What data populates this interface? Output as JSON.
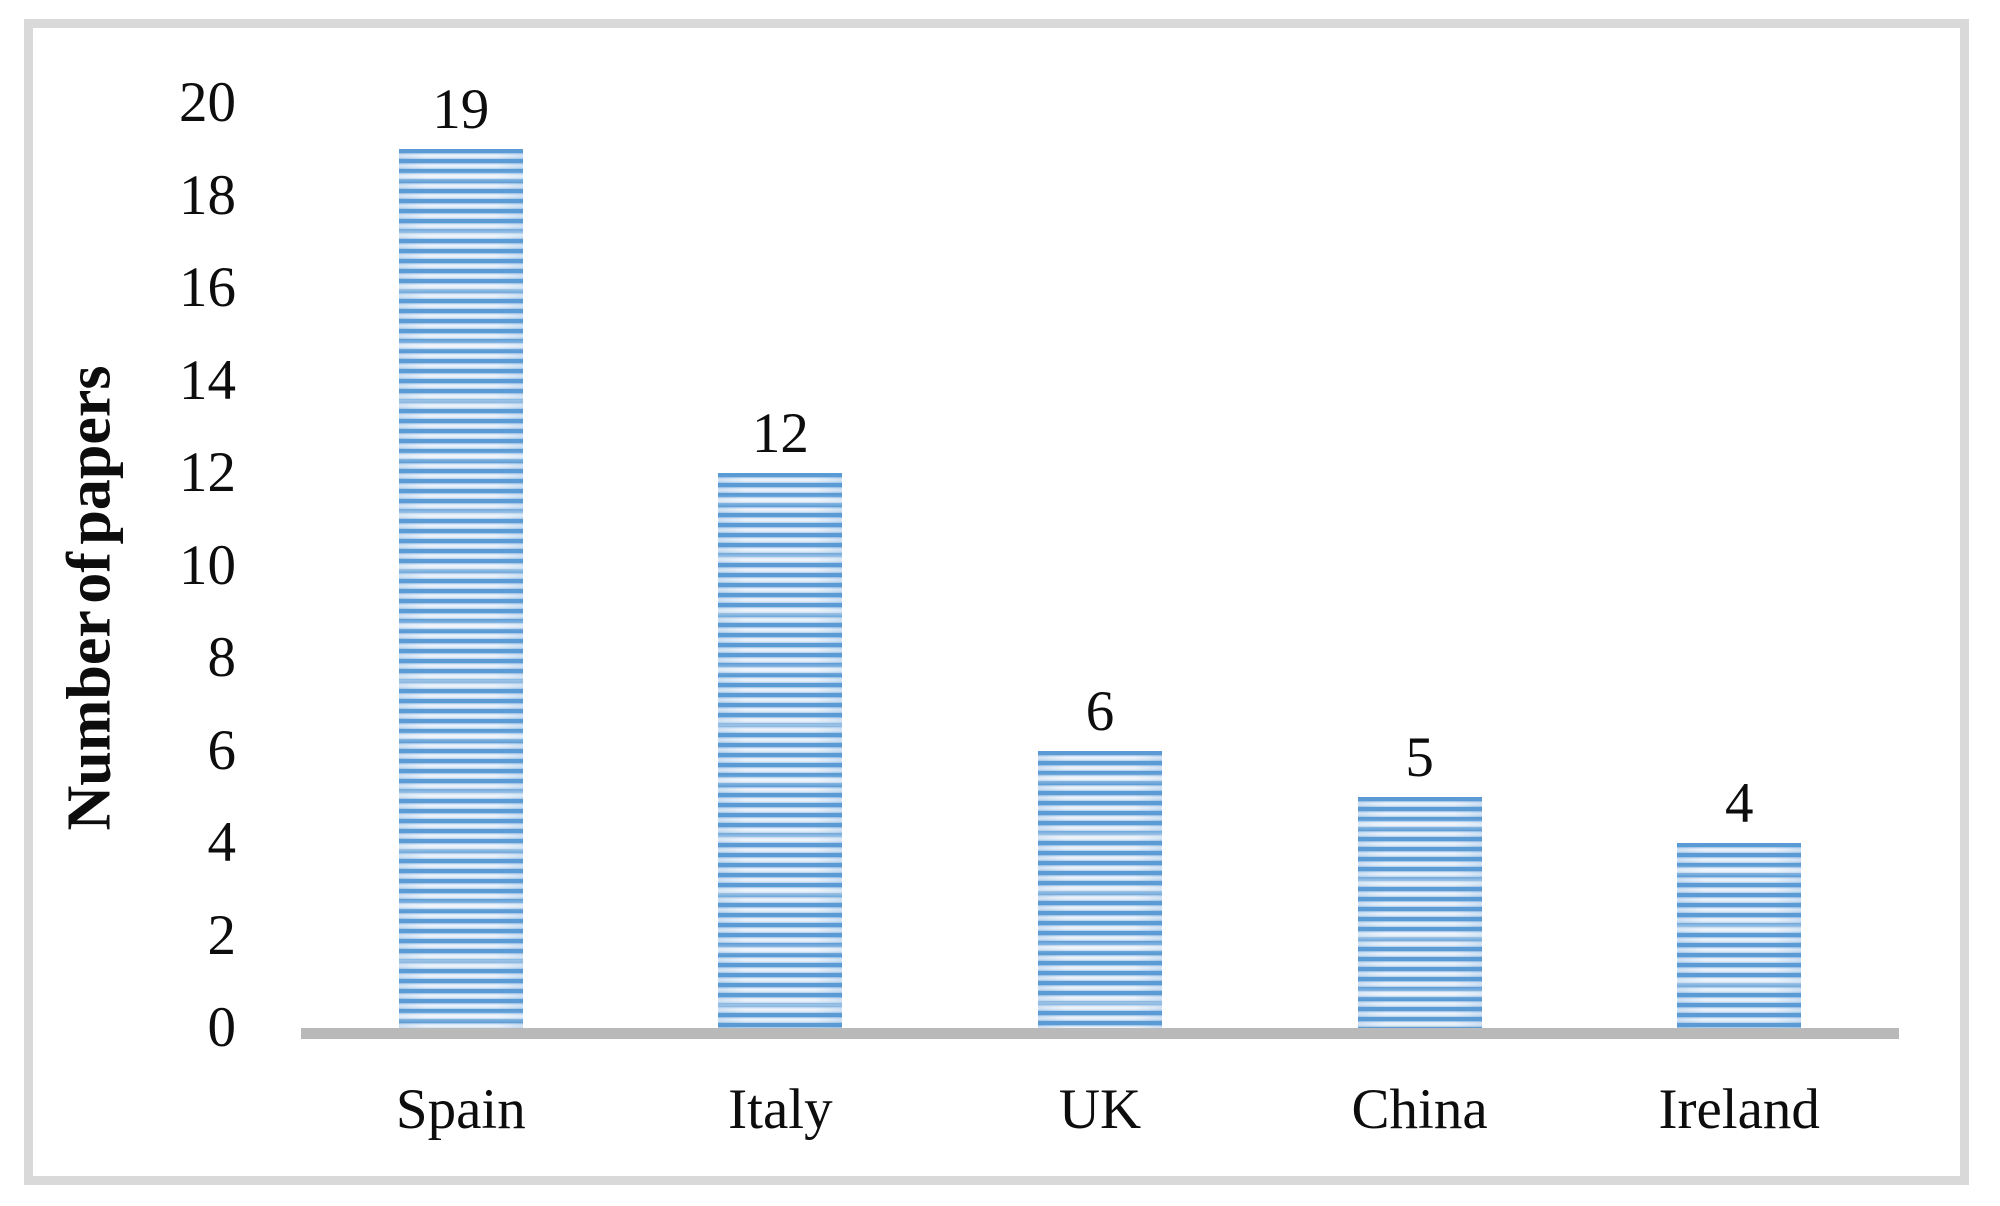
{
  "chart_data": {
    "type": "bar",
    "categories": [
      "Spain",
      "Italy",
      "UK",
      "China",
      "Ireland"
    ],
    "values": [
      19,
      12,
      6,
      5,
      4
    ],
    "title": "",
    "xlabel": "",
    "ylabel": "Number of papers",
    "ylim": [
      0,
      20
    ],
    "ytick_step": 2,
    "yticks": [
      0,
      2,
      4,
      6,
      8,
      10,
      12,
      14,
      16,
      18,
      20
    ],
    "show_data_labels": true,
    "grid": "off",
    "legend": "none",
    "bar_fill_style": "horizontal-stripe-pattern",
    "colors": {
      "bar_stripe_dark": "#5b9bd5",
      "bar_stripe_light": "#e8f1fa",
      "axis_line": "#b9b9b9",
      "frame_border": "#d9d9d9",
      "text": "#000000",
      "background": "#ffffff"
    }
  }
}
